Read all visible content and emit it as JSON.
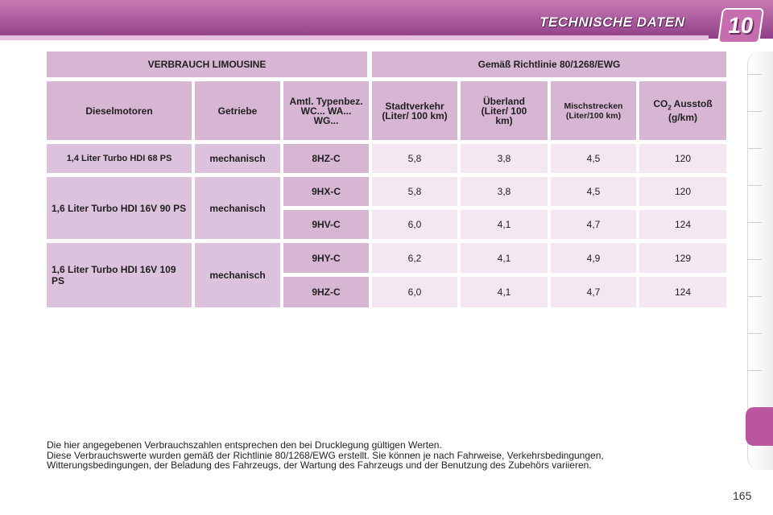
{
  "header": {
    "title": "TECHNISCHE DATEN",
    "chapter": "10"
  },
  "table": {
    "top_left": "VERBRAUCH LIMOUSINE",
    "top_right": "Gemäß Richtlinie 80/1268/EWG",
    "columns": {
      "engine": "Dieselmotoren",
      "gearbox": "Getriebe",
      "type": "Amtl. Typenbez. WC... WA... WG...",
      "city": "Stadtverkehr (Liter/ 100 km)",
      "highway": "Überland (Liter/ 100 km)",
      "combined": "Mischstrecken (Liter/100 km)",
      "co2_prefix": "CO",
      "co2_sub": "2",
      "co2_suffix": " Ausstoß (g/km)"
    },
    "groups": [
      {
        "engine": "1,4 Liter Turbo HDI 68 PS",
        "gearbox": "mechanisch",
        "rows": [
          {
            "code": "8HZ-C",
            "city": "5,8",
            "highway": "3,8",
            "combined": "4,5",
            "co2": "120"
          }
        ]
      },
      {
        "engine": "1,6 Liter Turbo HDI 16V 90 PS",
        "gearbox": "mechanisch",
        "rows": [
          {
            "code": "9HX-C",
            "city": "5,8",
            "highway": "3,8",
            "combined": "4,5",
            "co2": "120"
          },
          {
            "code": "9HV-C",
            "city": "6,0",
            "highway": "4,1",
            "combined": "4,7",
            "co2": "124"
          }
        ]
      },
      {
        "engine": "1,6 Liter Turbo HDI 16V 109 PS",
        "gearbox": "mechanisch",
        "rows": [
          {
            "code": "9HY-C",
            "city": "6,2",
            "highway": "4,1",
            "combined": "4,9",
            "co2": "129"
          },
          {
            "code": "9HZ-C",
            "city": "6,0",
            "highway": "4,1",
            "combined": "4,7",
            "co2": "124"
          }
        ]
      }
    ]
  },
  "footnote": {
    "line1": "Die hier angegebenen Verbrauchszahlen entsprechen den bei Drucklegung gültigen Werten.",
    "line2": "Diese Verbrauchswerte wurden gemäß der Richtlinie 80/1268/EWG erstellt. Sie können je nach Fahrweise, Verkehrsbedingungen,",
    "line3": "Witterungsbedingungen, der Beladung des Fahrzeugs, der Wartung des Fahrzeugs und der Benutzung des Zubehörs variieren."
  },
  "page_number": "165",
  "colors": {
    "header": "#a7569a",
    "header_cell": "#d7b6d4",
    "value_cell": "#f5e7f2",
    "side_tab": "#b9569f"
  }
}
